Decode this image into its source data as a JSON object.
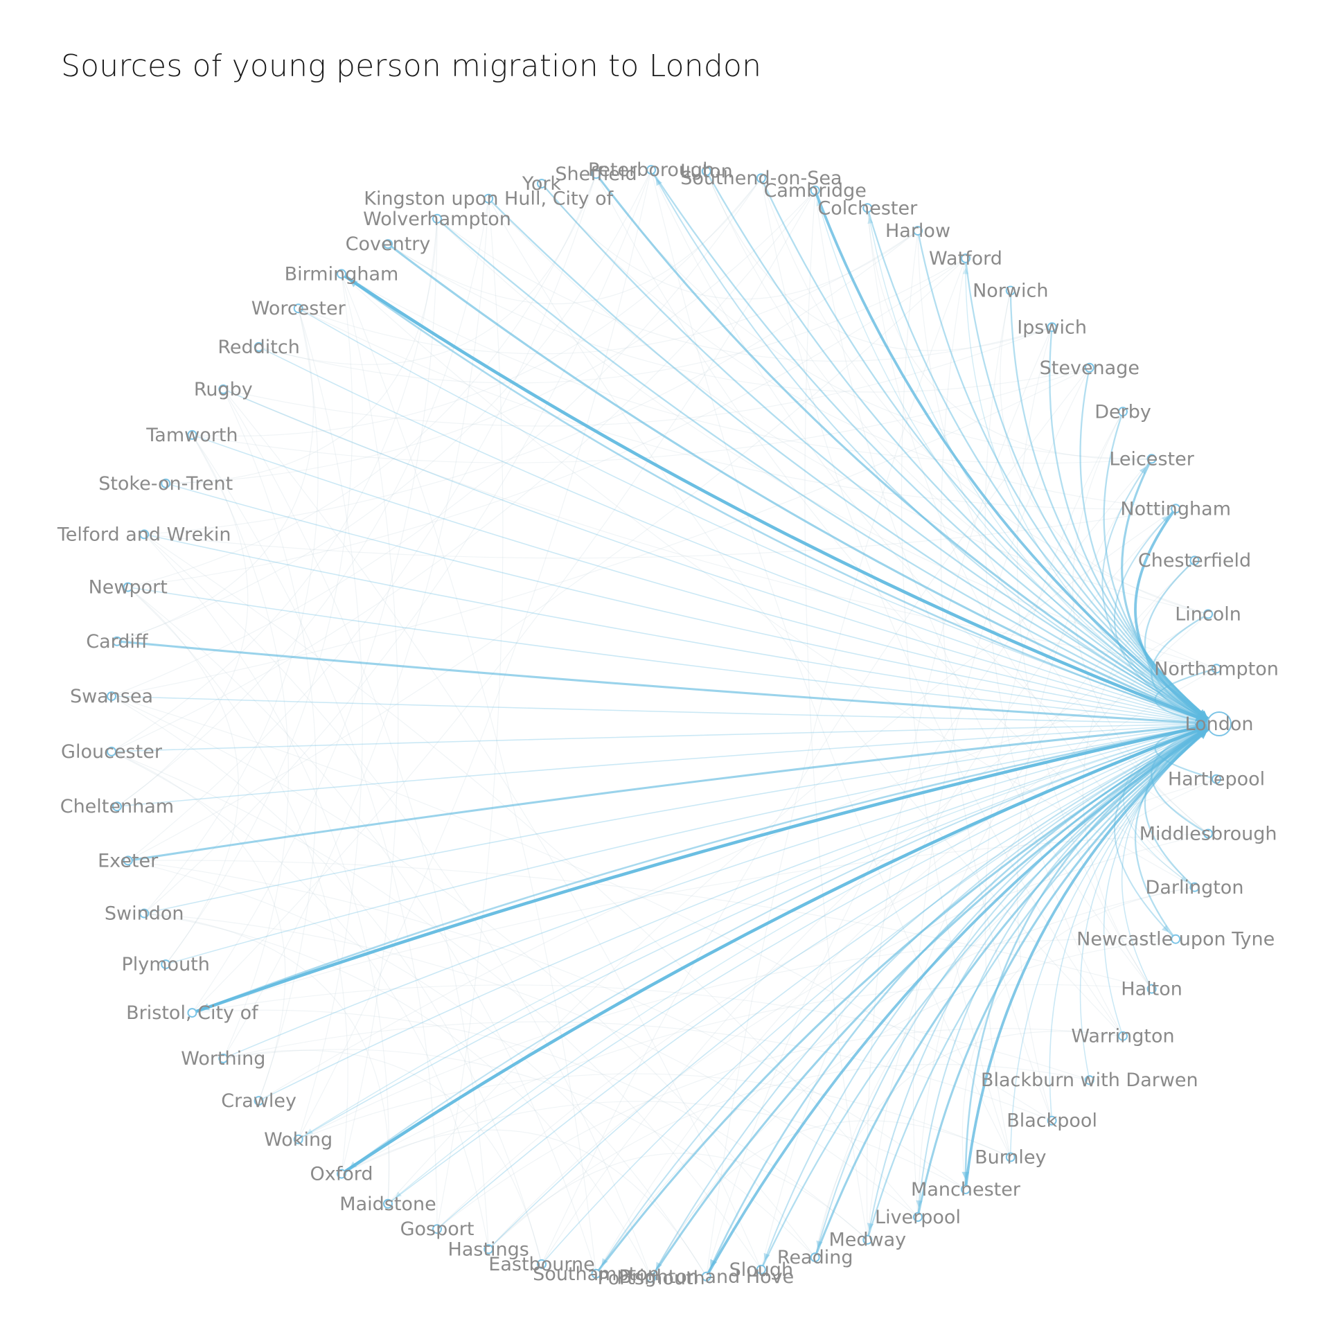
{
  "title": "Sources of young person migration to London",
  "hub": "London",
  "colors": {
    "edge": "#5fb9e0",
    "node": "#7cc4e6",
    "label": "#8a8a8a",
    "title": "#1a1a1a"
  },
  "nodes": [
    "London",
    "Hartlepool",
    "Middlesbrough",
    "Darlington",
    "Newcastle upon Tyne",
    "Halton",
    "Warrington",
    "Blackburn with Darwen",
    "Blackpool",
    "Burnley",
    "Manchester",
    "Liverpool",
    "Medway",
    "Reading",
    "Slough",
    "Brighton and Hove",
    "Portsmouth",
    "Southampton",
    "Eastbourne",
    "Hastings",
    "Gosport",
    "Maidstone",
    "Oxford",
    "Woking",
    "Crawley",
    "Worthing",
    "Bristol, City of",
    "Plymouth",
    "Swindon",
    "Exeter",
    "Cheltenham",
    "Gloucester",
    "Swansea",
    "Cardiff",
    "Newport",
    "Telford and Wrekin",
    "Stoke-on-Trent",
    "Tamworth",
    "Rugby",
    "Redditch",
    "Worcester",
    "Birmingham",
    "Coventry",
    "Wolverhampton",
    "Kingston upon Hull, City of",
    "York",
    "Sheffield",
    "Peterborough",
    "Luton",
    "Southend-on-Sea",
    "Cambridge",
    "Colchester",
    "Harlow",
    "Watford",
    "Norwich",
    "Ipswich",
    "Stevenage",
    "Derby",
    "Leicester",
    "Nottingham",
    "Chesterfield",
    "Lincoln",
    "Northampton"
  ],
  "flows_to_london": [
    {
      "from": "Birmingham",
      "weight": 5
    },
    {
      "from": "Bristol, City of",
      "weight": 5
    },
    {
      "from": "Oxford",
      "weight": 5
    },
    {
      "from": "Brighton and Hove",
      "weight": 4
    },
    {
      "from": "Manchester",
      "weight": 4
    },
    {
      "from": "Cambridge",
      "weight": 4
    },
    {
      "from": "Nottingham",
      "weight": 4
    },
    {
      "from": "Leicester",
      "weight": 3
    },
    {
      "from": "Coventry",
      "weight": 3
    },
    {
      "from": "Cardiff",
      "weight": 3
    },
    {
      "from": "Exeter",
      "weight": 3
    },
    {
      "from": "Liverpool",
      "weight": 3
    },
    {
      "from": "Reading",
      "weight": 3
    },
    {
      "from": "Southampton",
      "weight": 3
    },
    {
      "from": "Portsmouth",
      "weight": 3
    },
    {
      "from": "Sheffield",
      "weight": 3
    },
    {
      "from": "York",
      "weight": 2
    },
    {
      "from": "Peterborough",
      "weight": 2
    },
    {
      "from": "Colchester",
      "weight": 2
    },
    {
      "from": "Norwich",
      "weight": 2
    },
    {
      "from": "Newcastle upon Tyne",
      "weight": 2
    },
    {
      "from": "Medway",
      "weight": 2
    },
    {
      "from": "Slough",
      "weight": 2
    },
    {
      "from": "Wolverhampton",
      "weight": 2
    },
    {
      "from": "Kingston upon Hull, City of",
      "weight": 2
    },
    {
      "from": "Luton",
      "weight": 2
    },
    {
      "from": "Southend-on-Sea",
      "weight": 2
    },
    {
      "from": "Harlow",
      "weight": 2
    },
    {
      "from": "Watford",
      "weight": 2
    },
    {
      "from": "Ipswich",
      "weight": 2
    },
    {
      "from": "Stevenage",
      "weight": 2
    },
    {
      "from": "Derby",
      "weight": 2
    },
    {
      "from": "Chesterfield",
      "weight": 2
    },
    {
      "from": "Lincoln",
      "weight": 2
    },
    {
      "from": "Northampton",
      "weight": 2
    },
    {
      "from": "Middlesbrough",
      "weight": 2
    },
    {
      "from": "Darlington",
      "weight": 2
    },
    {
      "from": "Hartlepool",
      "weight": 2
    },
    {
      "from": "Halton",
      "weight": 1
    },
    {
      "from": "Warrington",
      "weight": 1
    },
    {
      "from": "Blackburn with Darwen",
      "weight": 1
    },
    {
      "from": "Blackpool",
      "weight": 1
    },
    {
      "from": "Burnley",
      "weight": 1
    },
    {
      "from": "Eastbourne",
      "weight": 1
    },
    {
      "from": "Hastings",
      "weight": 1
    },
    {
      "from": "Gosport",
      "weight": 1
    },
    {
      "from": "Maidstone",
      "weight": 1
    },
    {
      "from": "Woking",
      "weight": 1
    },
    {
      "from": "Crawley",
      "weight": 1
    },
    {
      "from": "Worthing",
      "weight": 1
    },
    {
      "from": "Plymouth",
      "weight": 1
    },
    {
      "from": "Swindon",
      "weight": 1
    },
    {
      "from": "Cheltenham",
      "weight": 1
    },
    {
      "from": "Gloucester",
      "weight": 1
    },
    {
      "from": "Swansea",
      "weight": 1
    },
    {
      "from": "Newport",
      "weight": 1
    },
    {
      "from": "Telford and Wrekin",
      "weight": 1
    },
    {
      "from": "Stoke-on-Trent",
      "weight": 1
    },
    {
      "from": "Tamworth",
      "weight": 1
    },
    {
      "from": "Rugby",
      "weight": 1
    },
    {
      "from": "Redditch",
      "weight": 1
    },
    {
      "from": "Worcester",
      "weight": 1
    }
  ],
  "flows_from_london": [
    {
      "to": "Birmingham",
      "weight": 3
    },
    {
      "to": "Bristol, City of",
      "weight": 3
    },
    {
      "to": "Oxford",
      "weight": 2
    },
    {
      "to": "Manchester",
      "weight": 3
    },
    {
      "to": "Brighton and Hove",
      "weight": 3
    },
    {
      "to": "Leicester",
      "weight": 2
    },
    {
      "to": "Nottingham",
      "weight": 2
    },
    {
      "to": "Peterborough",
      "weight": 2
    },
    {
      "to": "Southampton",
      "weight": 2
    },
    {
      "to": "Reading",
      "weight": 2
    },
    {
      "to": "Slough",
      "weight": 2
    },
    {
      "to": "Medway",
      "weight": 2
    },
    {
      "to": "Liverpool",
      "weight": 2
    },
    {
      "to": "Portsmouth",
      "weight": 2
    },
    {
      "to": "Maidstone",
      "weight": 1
    },
    {
      "to": "Woking",
      "weight": 1
    },
    {
      "to": "Newcastle upon Tyne",
      "weight": 2
    },
    {
      "to": "Darlington",
      "weight": 1
    },
    {
      "to": "Watford",
      "weight": 1
    },
    {
      "to": "Cambridge",
      "weight": 1
    },
    {
      "to": "Colchester",
      "weight": 1
    }
  ]
}
